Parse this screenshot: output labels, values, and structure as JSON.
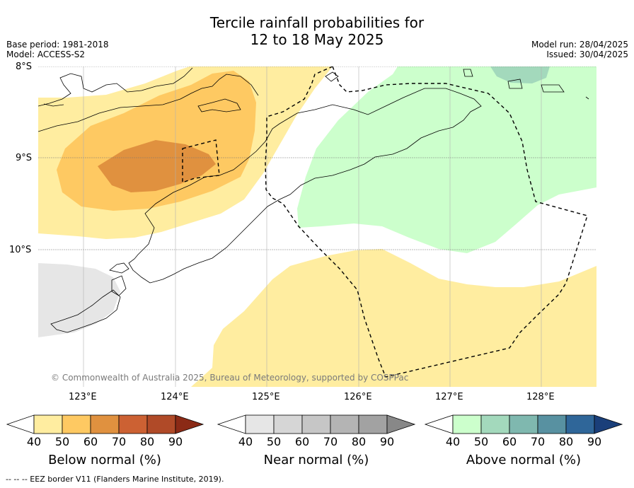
{
  "title_line1": "Tercile rainfall probabilities for",
  "title_line2": "12 to 18 May 2025",
  "base_period": "Base period: 1981-2018",
  "model": "Model: ACCESS-S2",
  "model_run": "Model run: 28/04/2025",
  "issued": "Issued: 30/04/2025",
  "lat_labels": [
    "8°S",
    "9°S",
    "10°S"
  ],
  "lon_labels": [
    "123°E",
    "124°E",
    "125°E",
    "126°E",
    "127°E",
    "128°E"
  ],
  "copyright": "© Commonwealth of Australia 2025, Bureau of Meteorology, supported by COSPPac",
  "footnote": "--  --  -- EEZ border V11 (Flanders Marine Institute, 2019).",
  "colorbars": [
    {
      "label": "Below normal (%)",
      "ticks": [
        "40",
        "50",
        "60",
        "70",
        "80",
        "90"
      ],
      "colors": [
        "#ffffff",
        "#ffeda0",
        "#fec962",
        "#e0913f",
        "#cc6133",
        "#b04a28",
        "#8b2a16"
      ]
    },
    {
      "label": "Near normal (%)",
      "ticks": [
        "40",
        "50",
        "60",
        "70",
        "80",
        "90"
      ],
      "colors": [
        "#ffffff",
        "#e6e6e6",
        "#d6d6d6",
        "#c6c6c6",
        "#b4b4b4",
        "#a2a2a2",
        "#888888"
      ]
    },
    {
      "label": "Above normal (%)",
      "ticks": [
        "40",
        "50",
        "60",
        "70",
        "80",
        "90"
      ],
      "colors": [
        "#ffffff",
        "#ccffcc",
        "#a3d9bc",
        "#7fb8af",
        "#5891a1",
        "#2f6699",
        "#1a3f7a"
      ]
    }
  ]
}
